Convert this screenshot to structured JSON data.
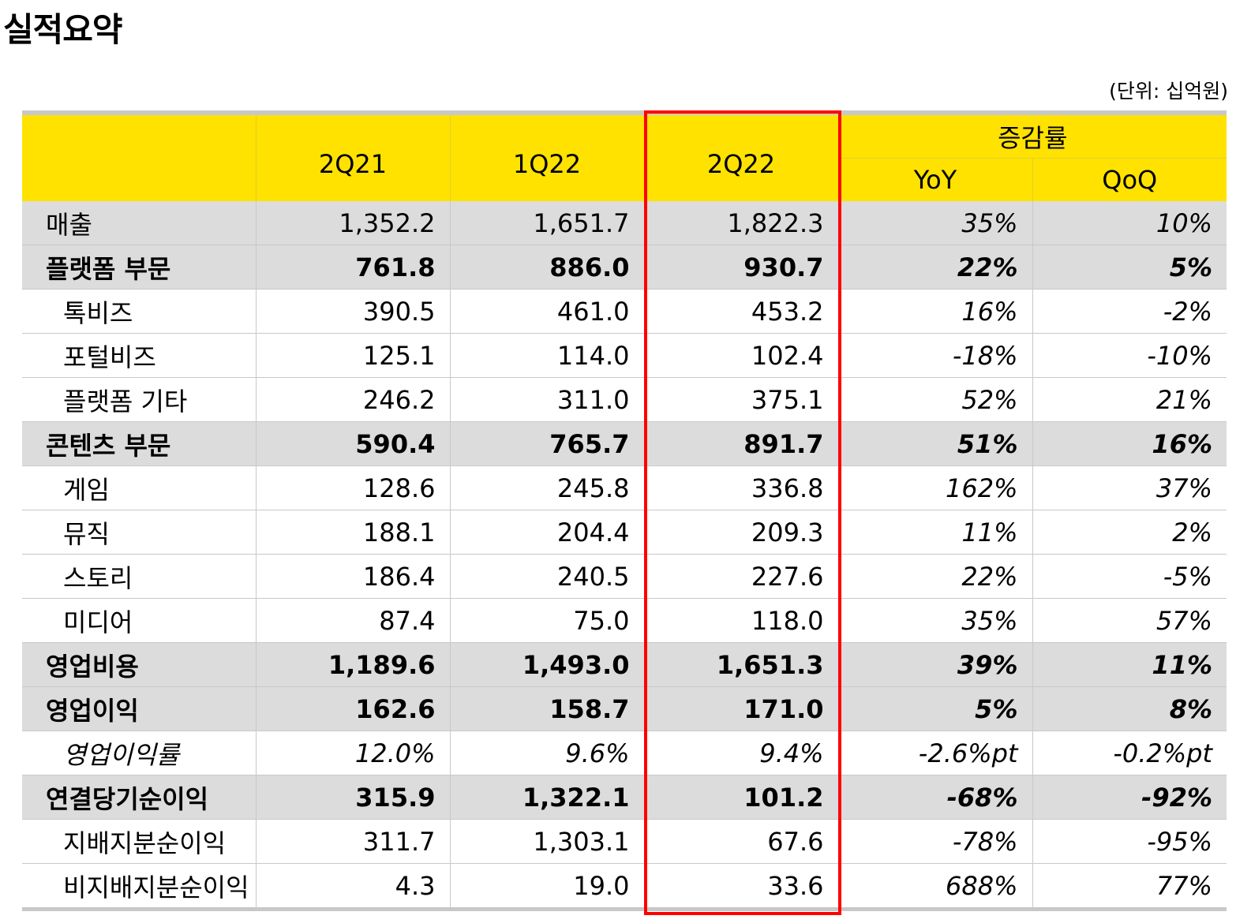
{
  "title": "실적요약",
  "unit": "(단위: 십억원)",
  "header": {
    "col_2q21": "2Q21",
    "col_1q22": "1Q22",
    "col_2q22": "2Q22",
    "growth": "증감률",
    "yoy": "YoY",
    "qoq": "QoQ"
  },
  "rows": [
    {
      "label": "매출",
      "v2q21": "1,352.2",
      "v1q22": "1,651.7",
      "v2q22": "1,822.3",
      "yoy": "35%",
      "qoq": "10%"
    },
    {
      "label": "플랫폼 부문",
      "v2q21": "761.8",
      "v1q22": "886.0",
      "v2q22": "930.7",
      "yoy": "22%",
      "qoq": "5%"
    },
    {
      "label": "톡비즈",
      "v2q21": "390.5",
      "v1q22": "461.0",
      "v2q22": "453.2",
      "yoy": "16%",
      "qoq": "-2%"
    },
    {
      "label": "포털비즈",
      "v2q21": "125.1",
      "v1q22": "114.0",
      "v2q22": "102.4",
      "yoy": "-18%",
      "qoq": "-10%"
    },
    {
      "label": "플랫폼 기타",
      "v2q21": "246.2",
      "v1q22": "311.0",
      "v2q22": "375.1",
      "yoy": "52%",
      "qoq": "21%"
    },
    {
      "label": "콘텐츠 부문",
      "v2q21": "590.4",
      "v1q22": "765.7",
      "v2q22": "891.7",
      "yoy": "51%",
      "qoq": "16%"
    },
    {
      "label": "게임",
      "v2q21": "128.6",
      "v1q22": "245.8",
      "v2q22": "336.8",
      "yoy": "162%",
      "qoq": "37%"
    },
    {
      "label": "뮤직",
      "v2q21": "188.1",
      "v1q22": "204.4",
      "v2q22": "209.3",
      "yoy": "11%",
      "qoq": "2%"
    },
    {
      "label": "스토리",
      "v2q21": "186.4",
      "v1q22": "240.5",
      "v2q22": "227.6",
      "yoy": "22%",
      "qoq": "-5%"
    },
    {
      "label": "미디어",
      "v2q21": "87.4",
      "v1q22": "75.0",
      "v2q22": "118.0",
      "yoy": "35%",
      "qoq": "57%"
    },
    {
      "label": "영업비용",
      "v2q21": "1,189.6",
      "v1q22": "1,493.0",
      "v2q22": "1,651.3",
      "yoy": "39%",
      "qoq": "11%"
    },
    {
      "label": "영업이익",
      "v2q21": "162.6",
      "v1q22": "158.7",
      "v2q22": "171.0",
      "yoy": "5%",
      "qoq": "8%"
    },
    {
      "label": "영업이익률",
      "v2q21": "12.0%",
      "v1q22": "9.6%",
      "v2q22": "9.4%",
      "yoy": "-2.6%pt",
      "qoq": "-0.2%pt"
    },
    {
      "label": "연결당기순이익",
      "v2q21": "315.9",
      "v1q22": "1,322.1",
      "v2q22": "101.2",
      "yoy": "-68%",
      "qoq": "-92%"
    },
    {
      "label": "지배지분순이익",
      "v2q21": "311.7",
      "v1q22": "1,303.1",
      "v2q22": "67.6",
      "yoy": "-78%",
      "qoq": "-95%"
    },
    {
      "label": "비지배지분순이익",
      "v2q21": "4.3",
      "v1q22": "19.0",
      "v2q22": "33.6",
      "yoy": "688%",
      "qoq": "77%"
    }
  ],
  "colors": {
    "header_bg": "#ffe200",
    "row_gray": "#dcdcdc",
    "highlight": "#ff0000"
  }
}
